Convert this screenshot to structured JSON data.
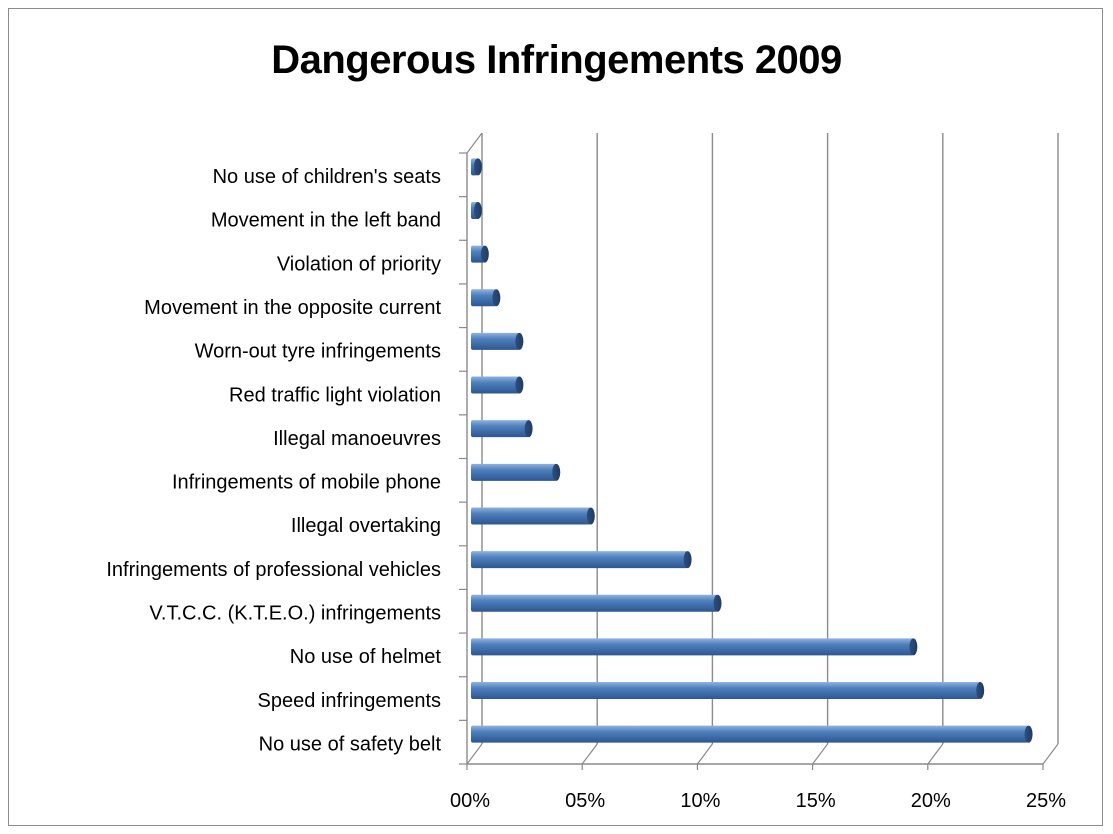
{
  "chart_data": {
    "type": "bar",
    "orientation": "horizontal",
    "title": "Dangerous Infringements 2009",
    "categories": [
      "No use of safety belt",
      "Speed infringements",
      "No use of helmet",
      "V.T.C.C. (K.T.E.O.) infringements",
      "Infringements of professional vehicles",
      "Illegal overtaking",
      "Infringements of mobile phone",
      "Illegal manoeuvres",
      "Red traffic light violation",
      "Worn-out tyre infringements",
      "Movement in the opposite current",
      "Violation of priority",
      "Movement in the left band",
      "No use of children's seats"
    ],
    "values": [
      24.2,
      22.1,
      19.2,
      10.7,
      9.4,
      5.2,
      3.7,
      2.5,
      2.1,
      2.1,
      1.1,
      0.6,
      0.3,
      0.3
    ],
    "xlim": [
      0,
      25
    ],
    "x_ticks": [
      0,
      5,
      10,
      15,
      20,
      25
    ],
    "x_tick_labels": [
      "00%",
      "05%",
      "10%",
      "15%",
      "20%",
      "25%"
    ],
    "grid": true,
    "legend": "none",
    "bar_color": "#4f81bd"
  }
}
